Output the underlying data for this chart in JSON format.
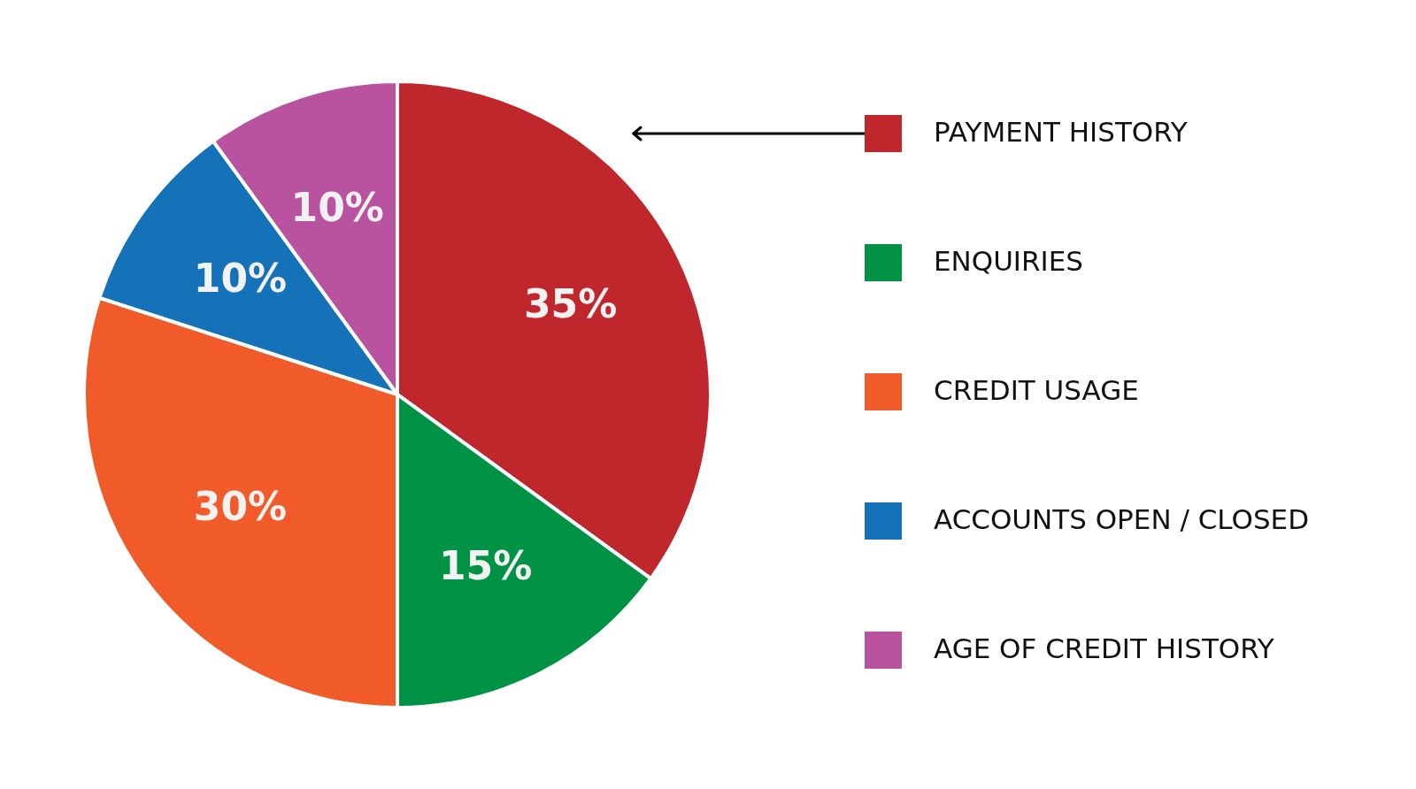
{
  "chart_data": {
    "type": "pie",
    "categories": [
      "PAYMENT HISTORY",
      "ENQUIRIES",
      "CREDIT USAGE",
      "ACCOUNTS OPEN / CLOSED",
      "AGE OF CREDIT HISTORY"
    ],
    "values": [
      35,
      15,
      30,
      10,
      10
    ],
    "colors": [
      "#c0272d",
      "#009245",
      "#f15a29",
      "#1572b9",
      "#b9539f"
    ],
    "value_labels": [
      "35%",
      "15%",
      "30%",
      "10%",
      "10%"
    ],
    "legend": "right"
  }
}
